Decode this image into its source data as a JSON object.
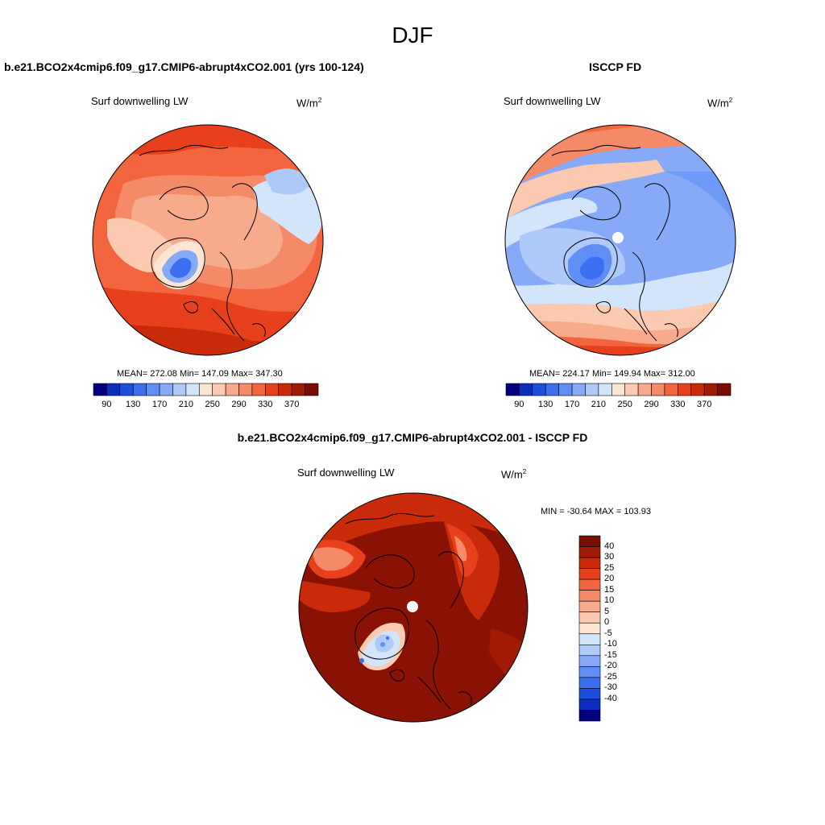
{
  "season": "DJF",
  "left_panel": {
    "case_title": "b.e21.BCO2x4cmip6.f09_g17.CMIP6-abrupt4xCO2.001 (yrs 100-124)",
    "variable": "Surf downwelling LW",
    "unit_base": "W/m",
    "unit_exp": "2",
    "stats": "MEAN= 272.08  Min= 147.09  Max= 347.30"
  },
  "right_panel": {
    "case_title": "ISCCP FD",
    "variable": "Surf downwelling LW",
    "unit_base": "W/m",
    "unit_exp": "2",
    "stats": "MEAN= 224.17  Min= 149.94  Max= 312.00"
  },
  "diff_panel": {
    "case_title": "b.e21.BCO2x4cmip6.f09_g17.CMIP6-abrupt4xCO2.001 - ISCCP FD",
    "variable": "Surf downwelling LW",
    "unit_base": "W/m",
    "unit_exp": "2",
    "stats": "MIN = -30.64 MAX = 103.93"
  },
  "horizontal_colorbar": {
    "colors": [
      "#00007f",
      "#0a2fbf",
      "#1a4fe0",
      "#3b6ff0",
      "#5f8ef5",
      "#86aaf7",
      "#aecaf9",
      "#d3e5fb",
      "#fde5d3",
      "#fbcab0",
      "#f8ab8c",
      "#f58a68",
      "#f2653f",
      "#e8401c",
      "#c92a0a",
      "#a01a06",
      "#7a0d03"
    ],
    "tick_labels": [
      "90",
      "130",
      "170",
      "210",
      "250",
      "290",
      "330",
      "370"
    ]
  },
  "vertical_colorbar": {
    "colors": [
      "#7a0d03",
      "#a01a06",
      "#c92a0a",
      "#e8401c",
      "#f2653f",
      "#f58a68",
      "#f8ab8c",
      "#fbcab0",
      "#fde5d3",
      "#d3e5fb",
      "#aecaf9",
      "#86aaf7",
      "#5f8ef5",
      "#3b6ff0",
      "#1a4fe0",
      "#0a2fbf",
      "#00007f"
    ],
    "tick_labels": [
      "40",
      "30",
      "25",
      "20",
      "15",
      "10",
      "5",
      "0",
      "-5",
      "-10",
      "-15",
      "-20",
      "-25",
      "-30",
      "-40"
    ]
  },
  "map_colors": {
    "dark_red": "#a01a06",
    "red": "#c92a0a",
    "deep_red": "#8a1204",
    "orange_red": "#e8401c",
    "orange": "#f2653f",
    "salmon": "#f58a68",
    "light_salmon": "#f8ab8c",
    "peach": "#fbcab0",
    "cream": "#fde5d3",
    "pale_blue": "#d3e5fb",
    "light_blue": "#aecaf9",
    "blue": "#86aaf7",
    "mid_blue": "#5f8ef5",
    "strong_blue": "#3b6ff0",
    "deep_blue": "#1a4fe0"
  }
}
